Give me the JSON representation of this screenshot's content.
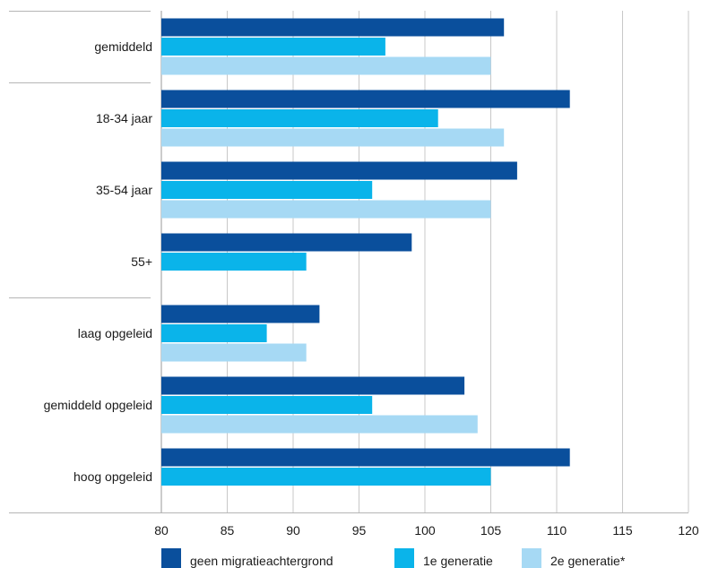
{
  "chart_data": {
    "type": "bar",
    "orientation": "horizontal",
    "categories": [
      "gemiddeld",
      "18-34 jaar",
      "35-54 jaar",
      "55+",
      "laag opgeleid",
      "gemiddeld opgeleid",
      "hoog opgeleid"
    ],
    "series": [
      {
        "name": "geen migratieachtergrond",
        "color": "#0a4f9c",
        "values": [
          106,
          111,
          107,
          99,
          92,
          103,
          111
        ]
      },
      {
        "name": "1e generatie",
        "color": "#0ab4ea",
        "values": [
          97,
          101,
          96,
          91,
          88,
          96,
          105
        ]
      },
      {
        "name": "2e generatie*",
        "color": "#a6d9f4",
        "values": [
          105,
          106,
          105,
          null,
          91,
          104,
          null
        ]
      }
    ],
    "xlim": [
      80,
      120
    ],
    "xticks": [
      80,
      85,
      90,
      95,
      100,
      105,
      110,
      115,
      120
    ],
    "grid": true,
    "legend_position": "bottom",
    "title": "",
    "xlabel": "",
    "ylabel": ""
  }
}
